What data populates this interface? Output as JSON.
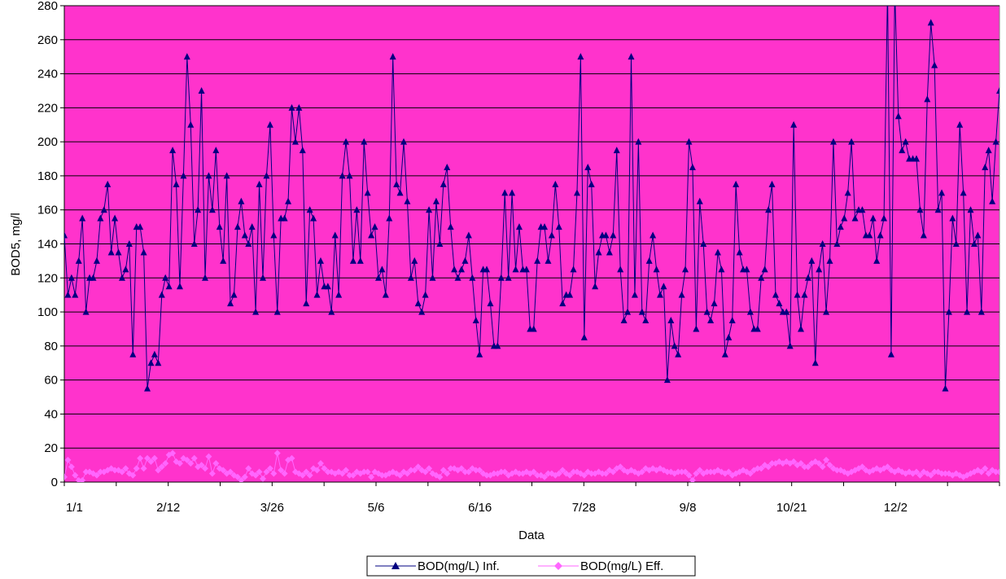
{
  "chart_data": {
    "type": "line",
    "title": "",
    "xlabel": "Data",
    "ylabel": "BOD5, mg/l",
    "ylim": [
      0,
      280
    ],
    "yticks": [
      0,
      20,
      40,
      60,
      80,
      100,
      120,
      140,
      160,
      180,
      200,
      220,
      240,
      260,
      280
    ],
    "xtick_labels": [
      "1/1",
      "2/12",
      "3/26",
      "5/6",
      "6/16",
      "7/28",
      "9/8",
      "10/21",
      "12/2"
    ],
    "grid": true,
    "legend_position": "bottom",
    "colors": {
      "plot_background": "#ff33cc",
      "influent": "#000080",
      "effluent": "#ff66ff"
    },
    "series": [
      {
        "name": "BOD(mg/L) Inf.",
        "marker": "triangle",
        "values": [
          145,
          110,
          120,
          110,
          130,
          155,
          100,
          120,
          120,
          130,
          155,
          160,
          175,
          135,
          155,
          135,
          120,
          125,
          140,
          75,
          150,
          150,
          135,
          55,
          70,
          75,
          70,
          110,
          120,
          115,
          195,
          175,
          115,
          180,
          250,
          210,
          140,
          160,
          230,
          120,
          180,
          160,
          195,
          150,
          130,
          180,
          105,
          110,
          150,
          165,
          145,
          140,
          150,
          100,
          175,
          120,
          180,
          210,
          145,
          100,
          155,
          155,
          165,
          220,
          200,
          220,
          195,
          105,
          160,
          155,
          110,
          130,
          115,
          115,
          100,
          145,
          110,
          180,
          200,
          180,
          130,
          160,
          130,
          200,
          170,
          145,
          150,
          120,
          125,
          110,
          155,
          250,
          175,
          170,
          200,
          165,
          120,
          130,
          105,
          100,
          110,
          160,
          120,
          165,
          140,
          175,
          185,
          150,
          125,
          120,
          125,
          130,
          145,
          120,
          95,
          75,
          125,
          125,
          105,
          80,
          80,
          120,
          170,
          120,
          170,
          125,
          150,
          125,
          125,
          90,
          90,
          130,
          150,
          150,
          130,
          145,
          175,
          150,
          105,
          110,
          110,
          125,
          170,
          250,
          85,
          185,
          175,
          115,
          135,
          145,
          145,
          135,
          145,
          195,
          125,
          95,
          100,
          250,
          110,
          200,
          100,
          95,
          130,
          145,
          125,
          110,
          115,
          60,
          95,
          80,
          75,
          110,
          125,
          200,
          185,
          90,
          165,
          140,
          100,
          95,
          105,
          135,
          125,
          75,
          85,
          95,
          175,
          135,
          125,
          125,
          100,
          90,
          90,
          120,
          125,
          160,
          175,
          110,
          105,
          100,
          100,
          80,
          210,
          110,
          90,
          110,
          120,
          130,
          70,
          125,
          140,
          100,
          130,
          200,
          140,
          150,
          155,
          170,
          200,
          155,
          160,
          160,
          145,
          145,
          155,
          130,
          145,
          155,
          290,
          75,
          290,
          215,
          195,
          200,
          190,
          190,
          190,
          160,
          145,
          225,
          270,
          245,
          160,
          170,
          55,
          100,
          155,
          140,
          210,
          170,
          100,
          160,
          140,
          145,
          100,
          185,
          195,
          165,
          200,
          230
        ]
      },
      {
        "name": "BOD(mg/L) Eff.",
        "marker": "diamond",
        "values": [
          3,
          13,
          9,
          4,
          1,
          1,
          6,
          6,
          5,
          4,
          6,
          6,
          7,
          8,
          7,
          7,
          6,
          8,
          5,
          4,
          8,
          14,
          8,
          14,
          12,
          14,
          7,
          9,
          11,
          16,
          17,
          12,
          11,
          14,
          13,
          11,
          14,
          9,
          10,
          8,
          15,
          5,
          11,
          8,
          7,
          5,
          6,
          4,
          3,
          1,
          3,
          8,
          5,
          4,
          6,
          2,
          6,
          8,
          5,
          17,
          7,
          5,
          13,
          14,
          6,
          5,
          4,
          6,
          4,
          8,
          7,
          11,
          8,
          6,
          6,
          5,
          6,
          5,
          7,
          4,
          4,
          6,
          5,
          6,
          6,
          3,
          6,
          5,
          4,
          4,
          5,
          6,
          5,
          4,
          6,
          5,
          7,
          7,
          9,
          7,
          6,
          8,
          5,
          4,
          3,
          7,
          5,
          8,
          8,
          7,
          8,
          6,
          6,
          8,
          7,
          7,
          5,
          4,
          4,
          5,
          5,
          6,
          6,
          4,
          5,
          6,
          5,
          5,
          6,
          5,
          6,
          4,
          4,
          3,
          5,
          5,
          4,
          5,
          7,
          5,
          4,
          6,
          6,
          5,
          4,
          6,
          5,
          5,
          6,
          5,
          5,
          7,
          6,
          8,
          9,
          7,
          6,
          7,
          6,
          5,
          6,
          8,
          7,
          8,
          7,
          8,
          7,
          6,
          6,
          5,
          6,
          6,
          6,
          4,
          1,
          5,
          7,
          5,
          6,
          6,
          6,
          7,
          6,
          5,
          6,
          4,
          5,
          6,
          7,
          6,
          5,
          7,
          8,
          8,
          10,
          9,
          11,
          11,
          12,
          11,
          12,
          11,
          12,
          10,
          11,
          9,
          9,
          11,
          12,
          11,
          9,
          13,
          10,
          8,
          7,
          7,
          6,
          5,
          6,
          7,
          8,
          9,
          7,
          6,
          7,
          8,
          7,
          8,
          9,
          7,
          6,
          7,
          6,
          5,
          6,
          5,
          6,
          4,
          6,
          5,
          4,
          6,
          6,
          5,
          5,
          5,
          4,
          5,
          4,
          3,
          4,
          5,
          6,
          7,
          6,
          8,
          5,
          7,
          6,
          6
        ]
      }
    ]
  }
}
